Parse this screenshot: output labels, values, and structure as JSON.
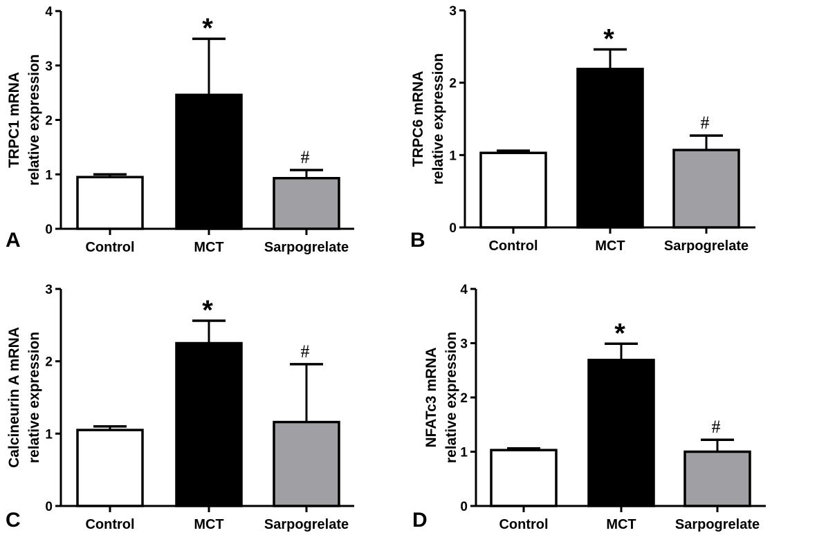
{
  "figure": {
    "colors": {
      "Control": "#ffffff",
      "MCT": "#000000",
      "Sarpogrelate": "#a0a0a4",
      "outline": "#000000"
    }
  },
  "chart_data": [
    {
      "type": "bar",
      "panel_label": "A",
      "title": "",
      "ylabel_line1": "TRPC1 mRNA",
      "ylabel_line2": "relative expression",
      "xlabel": "",
      "categories": [
        "Control",
        "MCT",
        "Sarpogrelate"
      ],
      "values": [
        0.95,
        2.46,
        0.93
      ],
      "error_upper": [
        1.0,
        3.49,
        1.08
      ],
      "annotations": [
        "",
        "*",
        "#"
      ],
      "ylim": [
        0,
        4
      ],
      "yticks": [
        "0",
        "1",
        "2",
        "3",
        "4"
      ],
      "grid": false,
      "legend": "none"
    },
    {
      "type": "bar",
      "panel_label": "B",
      "title": "",
      "ylabel_line1": "TRPC6 mRNA",
      "ylabel_line2": "relative expression",
      "xlabel": "",
      "categories": [
        "Control",
        "MCT",
        "Sarpogrelate"
      ],
      "values": [
        1.03,
        2.19,
        1.07
      ],
      "error_upper": [
        1.06,
        2.46,
        1.27
      ],
      "annotations": [
        "",
        "*",
        "#"
      ],
      "ylim": [
        0,
        3
      ],
      "yticks": [
        "0",
        "1",
        "2",
        "3"
      ],
      "grid": false,
      "legend": "none"
    },
    {
      "type": "bar",
      "panel_label": "C",
      "title": "",
      "ylabel_line1": "Calcineurin A mRNA",
      "ylabel_line2": "relative expression",
      "xlabel": "",
      "categories": [
        "Control",
        "MCT",
        "Sarpogrelate"
      ],
      "values": [
        1.05,
        2.25,
        1.16
      ],
      "error_upper": [
        1.1,
        2.56,
        1.96
      ],
      "annotations": [
        "",
        "*",
        "#"
      ],
      "ylim": [
        0,
        3
      ],
      "yticks": [
        "0",
        "1",
        "2",
        "3"
      ],
      "grid": false,
      "legend": "none"
    },
    {
      "type": "bar",
      "panel_label": "D",
      "title": "",
      "ylabel_line1": "NFATc3 mRNA",
      "ylabel_line2": "relative expression",
      "xlabel": "",
      "categories": [
        "Control",
        "MCT",
        "Sarpogrelate"
      ],
      "values": [
        1.03,
        2.69,
        1.0
      ],
      "error_upper": [
        1.06,
        2.99,
        1.22
      ],
      "annotations": [
        "",
        "*",
        "#"
      ],
      "ylim": [
        0,
        4
      ],
      "yticks": [
        "0",
        "1",
        "2",
        "3",
        "4"
      ],
      "grid": false,
      "legend": "none"
    }
  ]
}
